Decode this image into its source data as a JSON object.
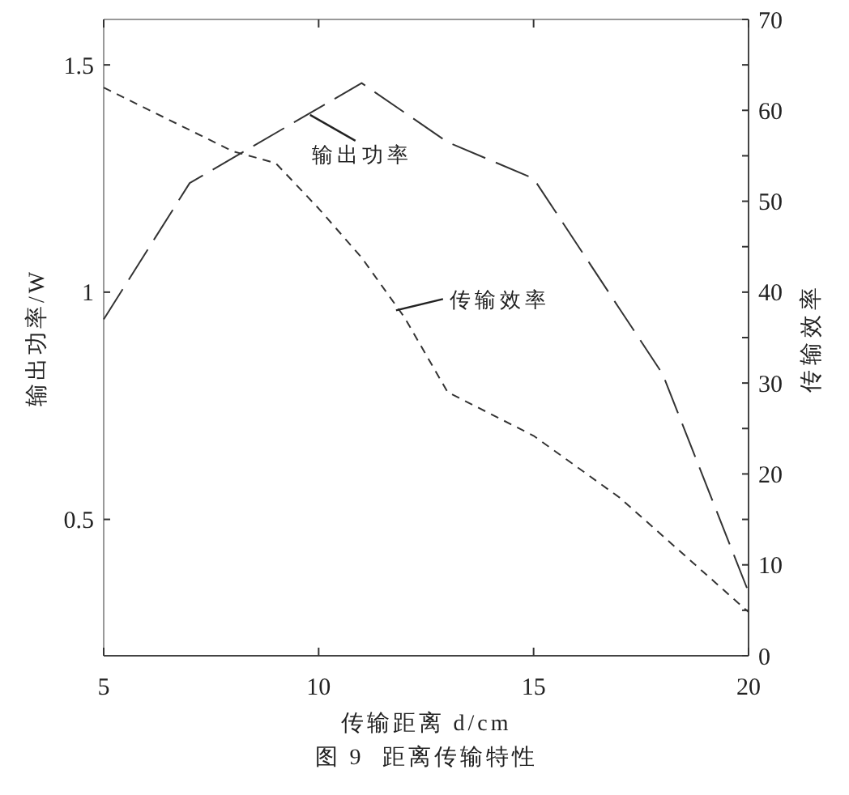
{
  "chart_data": {
    "type": "line",
    "title": "图 9  距离传输特性",
    "xlabel": "传输距离 d/cm",
    "ylabel": "输出功率/W",
    "y2label": "传输效率",
    "xlim": [
      5,
      20
    ],
    "xticks": [
      5,
      10,
      15,
      20
    ],
    "ylim": [
      0.2,
      1.6
    ],
    "yticks": [
      0.5,
      1,
      1.5
    ],
    "y2lim": [
      0,
      70
    ],
    "y2ticks": [
      0,
      {
        "value": 5,
        "label": null
      },
      10,
      {
        "value": 15,
        "label": null
      },
      20,
      {
        "value": 25,
        "label": null
      },
      30,
      {
        "value": 35,
        "label": null
      },
      40,
      {
        "value": 45,
        "label": null
      },
      50,
      {
        "value": 55,
        "label": null
      },
      60,
      {
        "value": 65,
        "label": null
      },
      70
    ],
    "series": [
      {
        "x": [
          5,
          7,
          11,
          13,
          15,
          18,
          20
        ],
        "values": [
          0.94,
          1.24,
          1.46,
          1.33,
          1.25,
          0.82,
          0.34
        ],
        "color": "#333333",
        "line_style": "dashed"
      },
      {
        "x": [
          5,
          8,
          9,
          10,
          11,
          12,
          13,
          15,
          17,
          20
        ],
        "values": [
          62.5,
          55.5,
          54.2,
          49.2,
          43.8,
          37.2,
          29,
          24.2,
          17.4,
          4.8
        ],
        "color": "#333333",
        "line_style": "dashed",
        "axis": "y2"
      }
    ],
    "annotations": [
      {
        "text": "输出功率",
        "x": 9.8,
        "y": 1.39
      },
      {
        "text": "传输效率",
        "x": 11.8,
        "y": 0.96
      }
    ]
  }
}
